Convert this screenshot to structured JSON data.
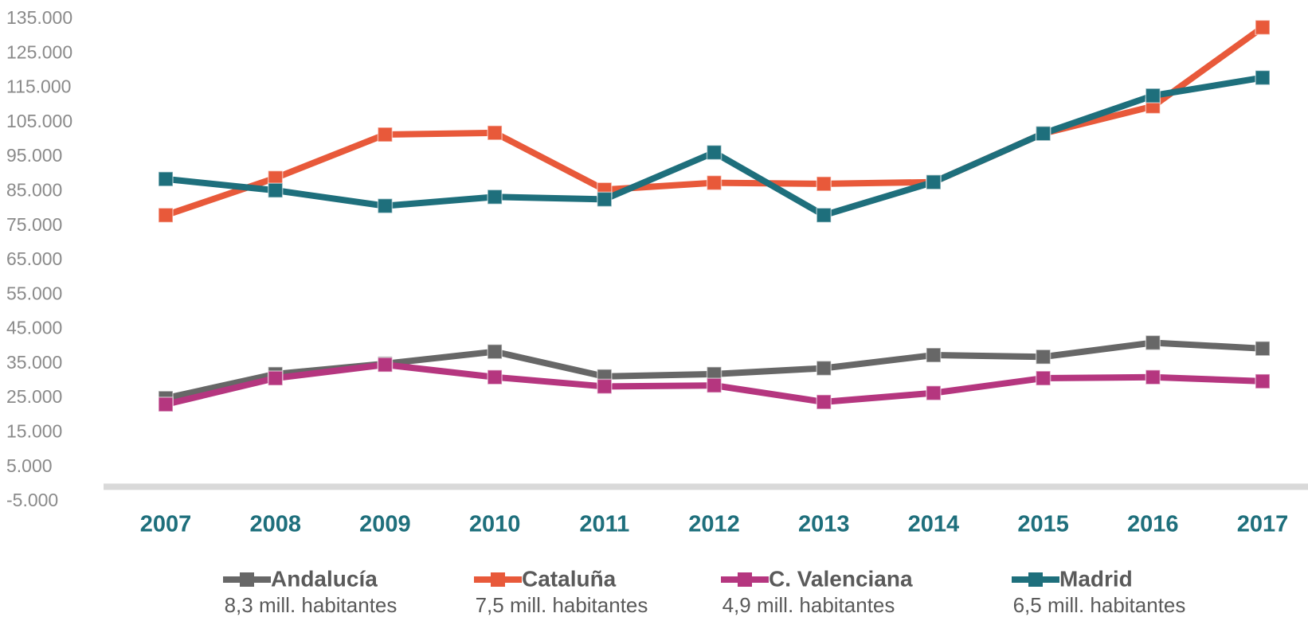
{
  "chart_data": {
    "type": "line",
    "categories": [
      "2007",
      "2008",
      "2009",
      "2010",
      "2011",
      "2012",
      "2013",
      "2014",
      "2015",
      "2016",
      "2017"
    ],
    "series": [
      {
        "name": "Andalucía",
        "legend_subtitle": "8,3 mill. habitantes",
        "color": "#676767",
        "values": [
          25000,
          32000,
          35000,
          38500,
          31300,
          32000,
          33700,
          37500,
          37000,
          41100,
          39400
        ]
      },
      {
        "name": "Cataluña",
        "legend_subtitle": "7,5 mill. habitantes",
        "color": "#e8593a",
        "values": [
          78100,
          88900,
          101500,
          102000,
          85500,
          87500,
          87200,
          87700,
          101800,
          109700,
          132600
        ]
      },
      {
        "name": "C. Valenciana",
        "legend_subtitle": "4,9 mill. habitantes",
        "color": "#b5367f",
        "values": [
          23200,
          30800,
          34700,
          31100,
          28400,
          28700,
          23900,
          26500,
          30800,
          31100,
          29900
        ]
      },
      {
        "name": "Madrid",
        "legend_subtitle": "6,5 mill. habitantes",
        "color": "#1e6f7c",
        "values": [
          88600,
          85300,
          80800,
          83400,
          82700,
          96300,
          78100,
          87700,
          101800,
          112800,
          118000
        ]
      }
    ],
    "ylim": [
      -5000,
      135000
    ],
    "yticks": [
      {
        "value": -5000,
        "label": "-5.000"
      },
      {
        "value": 5000,
        "label": "5.000"
      },
      {
        "value": 15000,
        "label": "15.000"
      },
      {
        "value": 25000,
        "label": "25.000"
      },
      {
        "value": 35000,
        "label": "35.000"
      },
      {
        "value": 45000,
        "label": "45.000"
      },
      {
        "value": 55000,
        "label": "55.000"
      },
      {
        "value": 65000,
        "label": "65.000"
      },
      {
        "value": 75000,
        "label": "75.000"
      },
      {
        "value": 85000,
        "label": "85.000"
      },
      {
        "value": 95000,
        "label": "95.000"
      },
      {
        "value": 105000,
        "label": "105.000"
      },
      {
        "value": 115000,
        "label": "115.000"
      },
      {
        "value": 125000,
        "label": "125.000"
      },
      {
        "value": 135000,
        "label": "135.000"
      }
    ],
    "grid": false,
    "legend": "bottom"
  }
}
